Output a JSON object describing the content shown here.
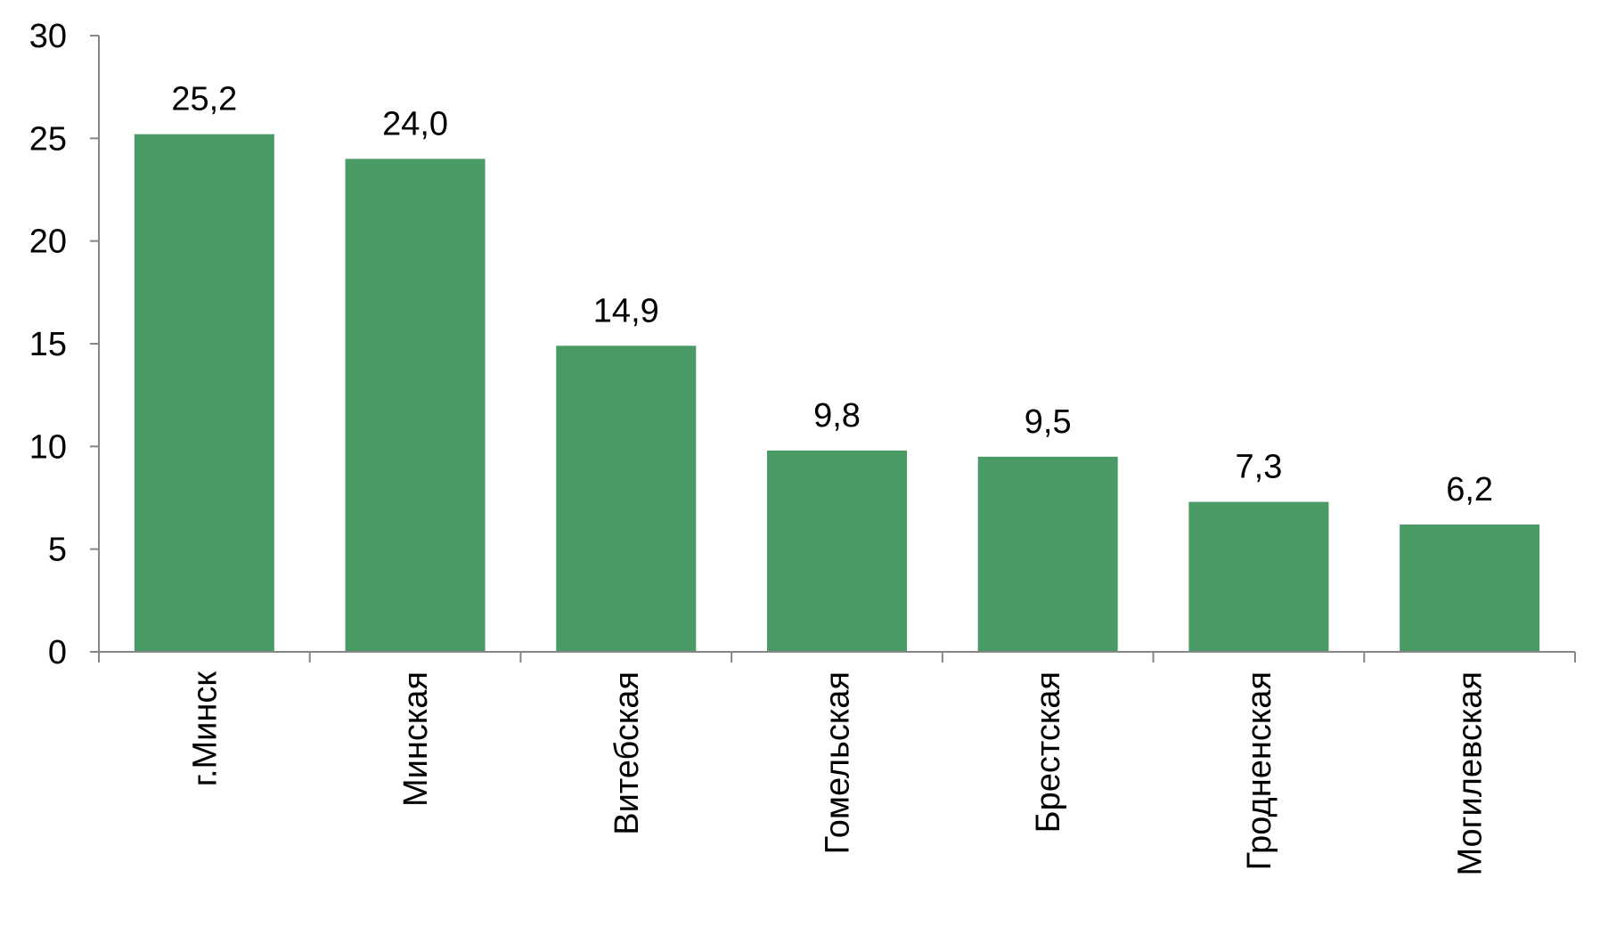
{
  "chart_data": {
    "type": "bar",
    "categories": [
      "г.Минск",
      "Минская",
      "Витебская",
      "Гомельская",
      "Брестская",
      "Гродненская",
      "Могилевская"
    ],
    "values": [
      25.2,
      24.0,
      14.9,
      9.8,
      9.5,
      7.3,
      6.2
    ],
    "data_labels": [
      "25,2",
      "24,0",
      "14,9",
      "9,8",
      "9,5",
      "7,3",
      "6,2"
    ],
    "yticks": [
      0,
      5,
      10,
      15,
      20,
      25,
      30
    ],
    "ylim": [
      0,
      30
    ],
    "grid": false,
    "legend": "none",
    "bar_color": "#4a9a66",
    "axis_color": "#868686"
  }
}
